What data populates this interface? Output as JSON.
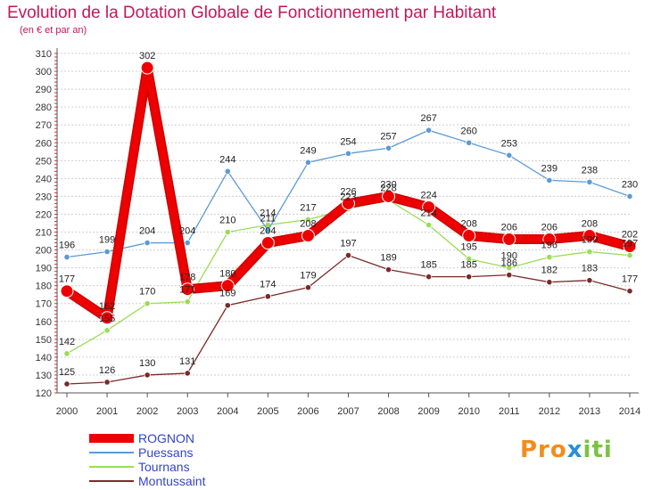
{
  "header": {
    "title": "Evolution de la Dotation Globale de Fonctionnement par Habitant",
    "subtitle": "(en € et par an)"
  },
  "brand": {
    "p1": "Pro",
    "x": "x",
    "p2": "iti"
  },
  "colors": {
    "title": "#c2185b",
    "tick_labels": "#333333",
    "value_labels": "#222222",
    "legend_text": "#3344cc",
    "grid": "#d0d0d0"
  },
  "chart_data": {
    "type": "line",
    "title": "Evolution de la Dotation Globale de Fonctionnement par Habitant",
    "subtitle": "(en € et par an)",
    "xlabel": "",
    "ylabel": "",
    "x": [
      "2000",
      "2001",
      "2002",
      "2003",
      "2004",
      "2005",
      "2006",
      "2007",
      "2008",
      "2009",
      "2010",
      "2011",
      "2012",
      "2013",
      "2014"
    ],
    "ylim": [
      120,
      310
    ],
    "yticks": [
      "120",
      "130",
      "140",
      "150",
      "160",
      "170",
      "180",
      "190",
      "200",
      "210",
      "220",
      "230",
      "240",
      "250",
      "260",
      "270",
      "280",
      "290",
      "300",
      "310"
    ],
    "grid": "horizontal",
    "legend_position": "bottom-left",
    "series": [
      {
        "name": "ROGNON",
        "color": "#ee0000",
        "values": [
          177,
          162,
          302,
          178,
          180,
          204,
          208,
          226,
          230,
          224,
          208,
          206,
          206,
          208,
          202
        ],
        "labels": [
          "177",
          "162",
          "302",
          "178",
          "180",
          "204",
          "208",
          "226",
          "230",
          "224",
          "208",
          "206",
          "206",
          "208",
          "202"
        ]
      },
      {
        "name": "Puessans",
        "color": "#5b9bd5",
        "values": [
          196,
          199,
          204,
          204,
          244,
          211,
          249,
          254,
          257,
          267,
          260,
          253,
          239,
          238,
          230
        ],
        "labels": [
          "196",
          "199",
          "204",
          "204",
          "244",
          "211",
          "249",
          "254",
          "257",
          "267",
          "260",
          "253",
          "239",
          "238",
          "230"
        ]
      },
      {
        "name": "Tournans",
        "color": "#99dd55",
        "values": [
          142,
          155,
          170,
          171,
          210,
          214,
          217,
          223,
          228,
          214,
          195,
          190,
          196,
          199,
          197
        ],
        "labels": [
          "142",
          "155",
          "170",
          "171",
          "210",
          "214",
          "217",
          "223",
          "228",
          "214",
          "195",
          "190",
          "196",
          "199",
          "197"
        ]
      },
      {
        "name": "Montussaint",
        "color": "#7a2a2a",
        "values": [
          125,
          126,
          130,
          131,
          169,
          174,
          179,
          197,
          189,
          185,
          185,
          186,
          182,
          183,
          177
        ],
        "labels": [
          "125",
          "126",
          "130",
          "131",
          "169",
          "174",
          "179",
          "197",
          "189",
          "185",
          "185",
          "186",
          "182",
          "183",
          "177"
        ]
      }
    ]
  }
}
